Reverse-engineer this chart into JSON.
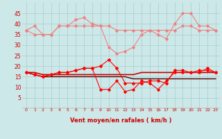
{
  "x": [
    0,
    1,
    2,
    3,
    4,
    5,
    6,
    7,
    8,
    9,
    10,
    11,
    12,
    13,
    14,
    15,
    16,
    17,
    18,
    19,
    20,
    21,
    22,
    23
  ],
  "series": [
    {
      "name": "rafales_max",
      "color": "#f08080",
      "lw": 0.8,
      "marker": "D",
      "ms": 1.8,
      "values": [
        37,
        39,
        35,
        35,
        39,
        39,
        42,
        43,
        40,
        39,
        29,
        26,
        27,
        29,
        35,
        37,
        35,
        33,
        40,
        45,
        45,
        39,
        39,
        37
      ]
    },
    {
      "name": "rafales_mid",
      "color": "#f08080",
      "lw": 0.8,
      "marker": "D",
      "ms": 1.8,
      "values": [
        37,
        35,
        35,
        35,
        39,
        39,
        39,
        39,
        39,
        39,
        39,
        37,
        37,
        37,
        37,
        37,
        37,
        37,
        37,
        39,
        39,
        37,
        37,
        37
      ]
    },
    {
      "name": "vent_jauge",
      "color": "#ff0000",
      "lw": 0.8,
      "marker": "*",
      "ms": 3.0,
      "values": [
        17,
        16,
        15,
        16,
        17,
        17,
        18,
        19,
        19,
        20,
        23,
        19,
        12,
        12,
        12,
        13,
        13,
        12,
        18,
        18,
        17,
        17,
        19,
        17
      ]
    },
    {
      "name": "vent_moyen1",
      "color": "#cc0000",
      "lw": 1.2,
      "marker": null,
      "ms": 0,
      "values": [
        17,
        17,
        16,
        16,
        16,
        16,
        16,
        16,
        16,
        16,
        16,
        16,
        16,
        16,
        17,
        17,
        17,
        17,
        17,
        17,
        17,
        17,
        17,
        17
      ]
    },
    {
      "name": "vent_moyen2",
      "color": "#550000",
      "lw": 1.0,
      "marker": null,
      "ms": 0,
      "values": [
        17,
        16,
        15,
        15,
        15,
        15,
        15,
        15,
        15,
        15,
        15,
        15,
        15,
        14,
        14,
        14,
        14,
        14,
        14,
        14,
        14,
        14,
        14,
        14
      ]
    },
    {
      "name": "vent_min",
      "color": "#ff0000",
      "lw": 0.8,
      "marker": "D",
      "ms": 1.8,
      "values": [
        17,
        16,
        15,
        16,
        17,
        17,
        18,
        19,
        19,
        9,
        9,
        13,
        8,
        9,
        13,
        12,
        9,
        13,
        17,
        17,
        17,
        18,
        18,
        17
      ]
    }
  ],
  "xlim": [
    -0.5,
    23.5
  ],
  "ylim": [
    0,
    50
  ],
  "yticks": [
    5,
    10,
    15,
    20,
    25,
    30,
    35,
    40,
    45
  ],
  "xticks": [
    0,
    1,
    2,
    3,
    4,
    5,
    6,
    7,
    8,
    9,
    10,
    11,
    12,
    13,
    14,
    15,
    16,
    17,
    18,
    19,
    20,
    21,
    22,
    23
  ],
  "xlabel": "Vent moyen/en rafales ( km/h )",
  "xlabel_color": "#cc0000",
  "xlabel_fontsize": 6.0,
  "ytick_fontsize": 5.5,
  "xtick_fontsize": 4.5,
  "background_color": "#cce8e8",
  "grid_color": "#aacccc",
  "tick_color": "#cc0000",
  "arrow_color": "#cc0000",
  "figsize": [
    3.2,
    2.0
  ],
  "dpi": 100
}
